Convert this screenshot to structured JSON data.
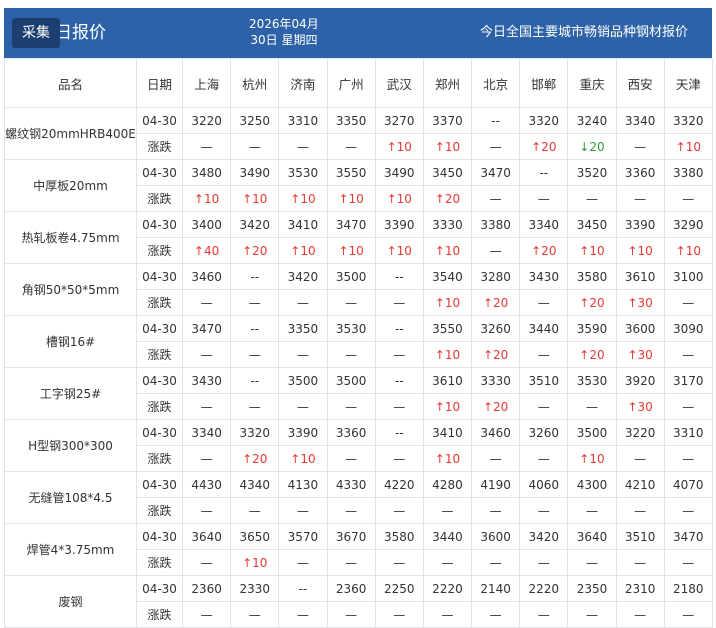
{
  "header": {
    "button": "采集",
    "title": "今日报价",
    "date_line1": "2026年04月",
    "date_line2": "30日 星期四",
    "subtitle": "今日全国主要城市畅销品种钢材报价"
  },
  "table": {
    "columns": [
      "品名",
      "日期",
      "上海",
      "杭州",
      "济南",
      "广州",
      "武汉",
      "郑州",
      "北京",
      "邯郸",
      "重庆",
      "西安",
      "天津"
    ],
    "change_label": "涨跌",
    "rows": [
      {
        "name": "螺纹钢20mmHRB400E",
        "date": "04-30",
        "prices": [
          "3220",
          "3250",
          "3310",
          "3350",
          "3270",
          "3370",
          "--",
          "3320",
          "3240",
          "3340",
          "3320"
        ],
        "changes": [
          "—",
          "—",
          "—",
          "—",
          "↑10",
          "↑10",
          "—",
          "↑20",
          "↓20",
          "—",
          "↑10"
        ]
      },
      {
        "name": "中厚板20mm",
        "date": "04-30",
        "prices": [
          "3480",
          "3490",
          "3530",
          "3550",
          "3490",
          "3450",
          "3470",
          "--",
          "3520",
          "3360",
          "3380"
        ],
        "changes": [
          "↑10",
          "↑10",
          "↑10",
          "↑10",
          "↑10",
          "↑20",
          "—",
          "—",
          "—",
          "—",
          "—"
        ]
      },
      {
        "name": "热轧板卷4.75mm",
        "date": "04-30",
        "prices": [
          "3400",
          "3420",
          "3410",
          "3470",
          "3390",
          "3330",
          "3380",
          "3340",
          "3450",
          "3390",
          "3290"
        ],
        "changes": [
          "↑40",
          "↑20",
          "↑10",
          "↑10",
          "↑10",
          "↑10",
          "—",
          "↑20",
          "↑10",
          "↑10",
          "↑10"
        ]
      },
      {
        "name": "角钢50*50*5mm",
        "date": "04-30",
        "prices": [
          "3460",
          "--",
          "3420",
          "3500",
          "--",
          "3540",
          "3280",
          "3430",
          "3580",
          "3610",
          "3100"
        ],
        "changes": [
          "—",
          "—",
          "—",
          "—",
          "—",
          "↑10",
          "↑20",
          "—",
          "↑20",
          "↑30",
          "—"
        ]
      },
      {
        "name": "槽钢16#",
        "date": "04-30",
        "prices": [
          "3470",
          "--",
          "3350",
          "3530",
          "--",
          "3550",
          "3260",
          "3440",
          "3590",
          "3600",
          "3090"
        ],
        "changes": [
          "—",
          "—",
          "—",
          "—",
          "—",
          "↑10",
          "↑20",
          "—",
          "↑20",
          "↑30",
          "—"
        ]
      },
      {
        "name": "工字钢25#",
        "date": "04-30",
        "prices": [
          "3430",
          "--",
          "3500",
          "3500",
          "--",
          "3610",
          "3330",
          "3510",
          "3530",
          "3920",
          "3170"
        ],
        "changes": [
          "—",
          "—",
          "—",
          "—",
          "—",
          "↑10",
          "↑20",
          "—",
          "—",
          "↑30",
          "—"
        ]
      },
      {
        "name": "H型钢300*300",
        "date": "04-30",
        "prices": [
          "3340",
          "3320",
          "3390",
          "3360",
          "--",
          "3410",
          "3460",
          "3260",
          "3500",
          "3220",
          "3310"
        ],
        "changes": [
          "—",
          "↑20",
          "↑10",
          "—",
          "—",
          "↑10",
          "—",
          "—",
          "↑10",
          "—",
          "—"
        ]
      },
      {
        "name": "无缝管108*4.5",
        "date": "04-30",
        "prices": [
          "4430",
          "4340",
          "4130",
          "4330",
          "4220",
          "4280",
          "4190",
          "4060",
          "4300",
          "4210",
          "4070"
        ],
        "changes": [
          "—",
          "—",
          "—",
          "—",
          "—",
          "—",
          "—",
          "—",
          "—",
          "—",
          "—"
        ]
      },
      {
        "name": "焊管4*3.75mm",
        "date": "04-30",
        "prices": [
          "3640",
          "3650",
          "3570",
          "3670",
          "3580",
          "3440",
          "3600",
          "3420",
          "3640",
          "3510",
          "3470"
        ],
        "changes": [
          "—",
          "↑10",
          "—",
          "—",
          "—",
          "—",
          "—",
          "—",
          "—",
          "—",
          "—"
        ]
      },
      {
        "name": "废钢",
        "date": "04-30",
        "prices": [
          "2360",
          "2330",
          "--",
          "2360",
          "2250",
          "2220",
          "2140",
          "2220",
          "2350",
          "2310",
          "2180"
        ],
        "changes": [
          "—",
          "—",
          "—",
          "—",
          "—",
          "—",
          "—",
          "—",
          "—",
          "—",
          "—"
        ]
      }
    ]
  }
}
